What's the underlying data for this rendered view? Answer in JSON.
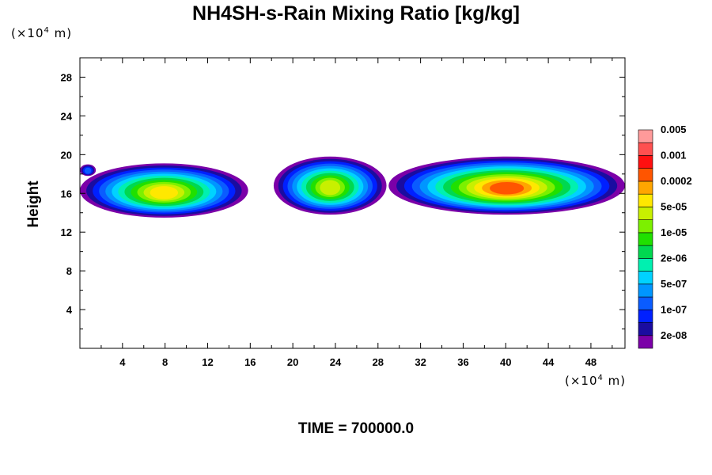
{
  "chart_data": {
    "type": "contour",
    "title": "NH4SH-s-Rain Mixing Ratio [kg/kg]",
    "ylabel": "Height",
    "x_unit_prefix": "(×10",
    "x_unit_exp": "4",
    "x_unit_suffix": " m)",
    "y_unit_prefix": "(×10",
    "y_unit_exp": "4",
    "y_unit_suffix": " m)",
    "xlim": [
      0,
      51.2
    ],
    "ylim": [
      0,
      30
    ],
    "x_ticks": [
      4,
      8,
      12,
      16,
      20,
      24,
      28,
      32,
      36,
      40,
      44,
      48
    ],
    "y_ticks": [
      4,
      8,
      12,
      16,
      20,
      24,
      28
    ],
    "time_label": "TIME = 700000.0",
    "colorbar": {
      "colors": [
        "#7b00a8",
        "#1a0ca0",
        "#0020ff",
        "#0a5cff",
        "#0096ff",
        "#00d2ff",
        "#00f0b0",
        "#00d850",
        "#20e000",
        "#7cf000",
        "#c8f000",
        "#ffe800",
        "#ffa500",
        "#ff5500",
        "#ff1010",
        "#ff5050",
        "#ff9a9a"
      ],
      "labels": [
        "2e-08",
        "1e-07",
        "5e-07",
        "2e-06",
        "1e-05",
        "5e-05",
        "0.0002",
        "0.001",
        "0.005"
      ]
    },
    "cloud_bands": [
      {
        "x_start": 0,
        "x_end": 1.5,
        "y_bottom": 17.8,
        "y_top": 19.0,
        "levels": [
          0,
          1,
          2,
          3
        ]
      },
      {
        "x_start": 0,
        "x_end": 15.8,
        "y_bottom": 13.5,
        "y_top": 19.1,
        "levels": [
          0,
          1,
          2,
          3,
          4,
          5,
          6,
          7,
          8,
          9,
          10,
          11
        ]
      },
      {
        "x_start": 18.2,
        "x_end": 28.8,
        "y_bottom": 13.8,
        "y_top": 19.8,
        "levels": [
          0,
          1,
          2,
          3,
          4,
          5,
          6,
          7,
          8,
          9,
          10
        ]
      },
      {
        "x_start": 29.0,
        "x_end": 51.2,
        "y_bottom": 13.8,
        "y_top": 19.8,
        "levels": [
          0,
          1,
          2,
          3,
          4,
          5,
          6,
          7,
          8,
          9,
          10,
          11,
          12,
          13
        ]
      }
    ]
  }
}
